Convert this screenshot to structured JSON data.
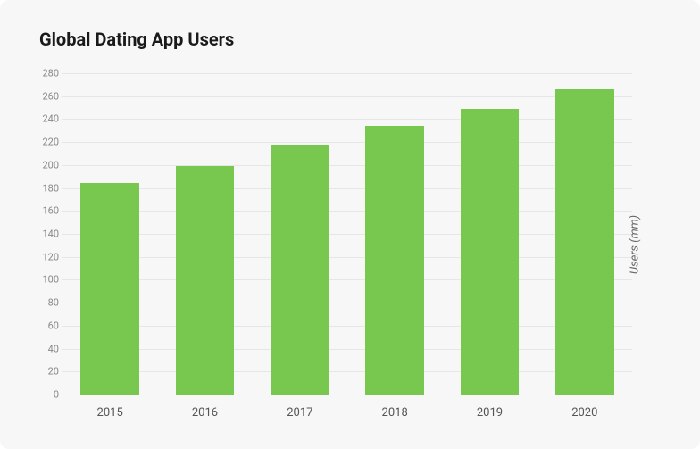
{
  "chart": {
    "type": "bar",
    "title": "Global Dating App Users",
    "title_fontsize": 20,
    "title_fontweight": 700,
    "title_color": "#1a1a1a",
    "card_background": "#f7f7f7",
    "grid_color": "#e6e6e6",
    "tick_color": "#888888",
    "xlabel_color": "#555555",
    "ylabel_color": "#666666",
    "bar_color": "#78c850",
    "bar_width_pct": 62,
    "y_axis_label": "Users (mm)",
    "y_axis_label_fontsize": 13,
    "y_axis_label_fontstyle": "italic",
    "xlabel_fontsize": 13,
    "ytick_fontsize": 11,
    "ylim": [
      0,
      280
    ],
    "ytick_step": 20,
    "yticks": [
      0,
      20,
      40,
      60,
      80,
      100,
      120,
      140,
      160,
      180,
      200,
      220,
      240,
      260,
      280
    ],
    "categories": [
      "2015",
      "2016",
      "2017",
      "2018",
      "2019",
      "2020"
    ],
    "values": [
      184,
      199,
      218,
      234,
      249,
      266
    ]
  }
}
